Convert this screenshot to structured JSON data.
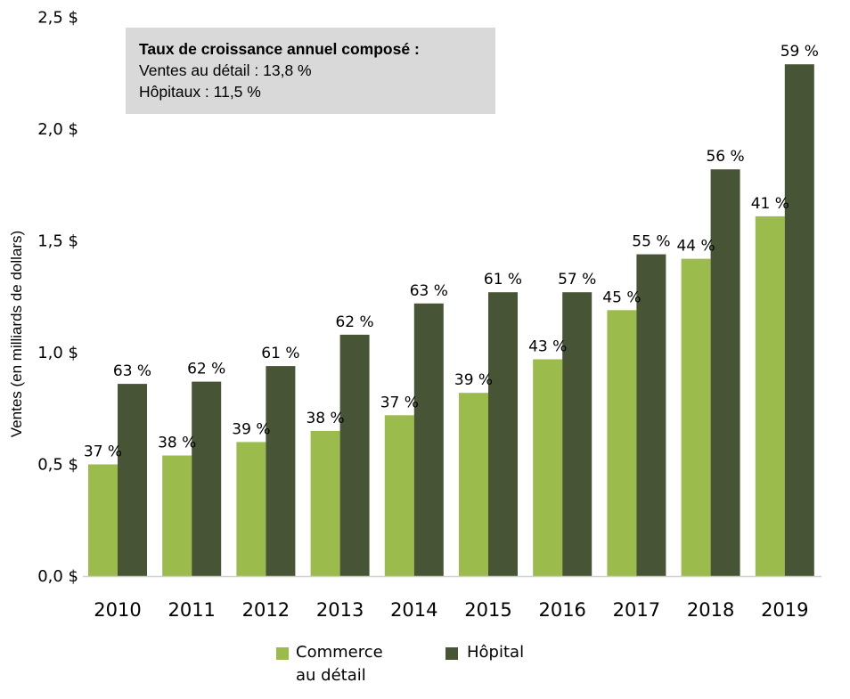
{
  "colors": {
    "retail": "#9bbb4c",
    "hospital": "#475435",
    "note_bg": "#d9d9d9",
    "axis": "#d0d0d0"
  },
  "note": {
    "title": "Taux de croissance annuel composé :",
    "line1": "Ventes au détail : 13,8 %",
    "line2": "Hôpitaux : 11,5 %"
  },
  "legend": {
    "retail_label": "Commerce\nau détail",
    "retail_line1": "Commerce",
    "retail_line2": "au détail",
    "hospital_label": "Hôpital"
  },
  "chart_data": {
    "type": "bar",
    "title": "",
    "xlabel": "",
    "ylabel": "Ventes (en milliards de dollars)",
    "ylim": [
      0,
      2.5
    ],
    "yticks": [
      0,
      0.5,
      1.0,
      1.5,
      2.0,
      2.5
    ],
    "ytick_labels": [
      "0,0 $",
      "0,5 $",
      "1,0 $",
      "1,5 $",
      "2,0 $",
      "2,5 $"
    ],
    "grid": false,
    "legend_position": "bottom",
    "categories": [
      "2010",
      "2011",
      "2012",
      "2013",
      "2014",
      "2015",
      "2016",
      "2017",
      "2018",
      "2019"
    ],
    "series": [
      {
        "name": "Commerce au détail",
        "color": "#9bbb4c",
        "values": [
          0.5,
          0.54,
          0.6,
          0.65,
          0.72,
          0.82,
          0.97,
          1.19,
          1.42,
          1.61
        ],
        "labels": [
          "37 %",
          "38 %",
          "39 %",
          "38 %",
          "37 %",
          "39 %",
          "43 %",
          "45 %",
          "44 %",
          "41 %"
        ]
      },
      {
        "name": "Hôpital",
        "color": "#475435",
        "values": [
          0.86,
          0.87,
          0.94,
          1.08,
          1.22,
          1.27,
          1.27,
          1.44,
          1.82,
          2.29
        ],
        "labels": [
          "63 %",
          "62 %",
          "61 %",
          "62 %",
          "63 %",
          "61 %",
          "57 %",
          "55 %",
          "56 %",
          "59 %"
        ]
      }
    ],
    "annotations": [
      "Taux de croissance annuel composé :",
      "Ventes au détail : 13,8 %",
      "Hôpitaux : 11,5 %"
    ]
  }
}
